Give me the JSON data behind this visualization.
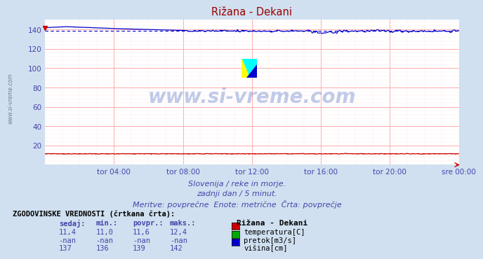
{
  "title": "Rižana - Dekani",
  "bg_color": "#d0e0f0",
  "plot_bg_color": "#ffffff",
  "grid_color_major": "#ffaaaa",
  "grid_color_minor": "#ffe8e8",
  "ylabel_color": "#4444aa",
  "xlabel_color": "#4444aa",
  "title_color": "#990000",
  "xlim": [
    0,
    288
  ],
  "ylim": [
    0,
    150
  ],
  "yticks": [
    20,
    40,
    60,
    80,
    100,
    120,
    140
  ],
  "xtick_labels": [
    "tor 04:00",
    "tor 08:00",
    "tor 12:00",
    "tor 16:00",
    "tor 20:00",
    "sre 00:00"
  ],
  "xtick_positions": [
    48,
    96,
    144,
    192,
    240,
    288
  ],
  "watermark": "www.si-vreme.com",
  "subtitle1": "Slovenija / reke in morje.",
  "subtitle2": "zadnji dan / 5 minut.",
  "subtitle3": "Meritve: povprečne  Enote: metrične  Črta: povprečje",
  "subtitle_color": "#4444aa",
  "legend_title": "Rižana - Dekani",
  "legend_items": [
    {
      "label": "temperatura[C]",
      "color": "#cc0000"
    },
    {
      "label": "pretok[m3/s]",
      "color": "#00aa00"
    },
    {
      "label": "višina[cm]",
      "color": "#0000cc"
    }
  ],
  "table_header": "ZGODOVINSKE VREDNOSTI (črtkana črta):",
  "table_col_header": [
    "sedaj:",
    "min.:",
    "povpr.:",
    "maks.:"
  ],
  "table_rows": [
    [
      "11,4",
      "11,0",
      "11,6",
      "12,4"
    ],
    [
      "-nan",
      "-nan",
      "-nan",
      "-nan"
    ],
    [
      "137",
      "136",
      "139",
      "142"
    ]
  ],
  "temp_avg": 11.6,
  "height_avg": 139,
  "temp_color": "#cc0000",
  "flow_color": "#00aa00",
  "height_color": "#0000cc"
}
